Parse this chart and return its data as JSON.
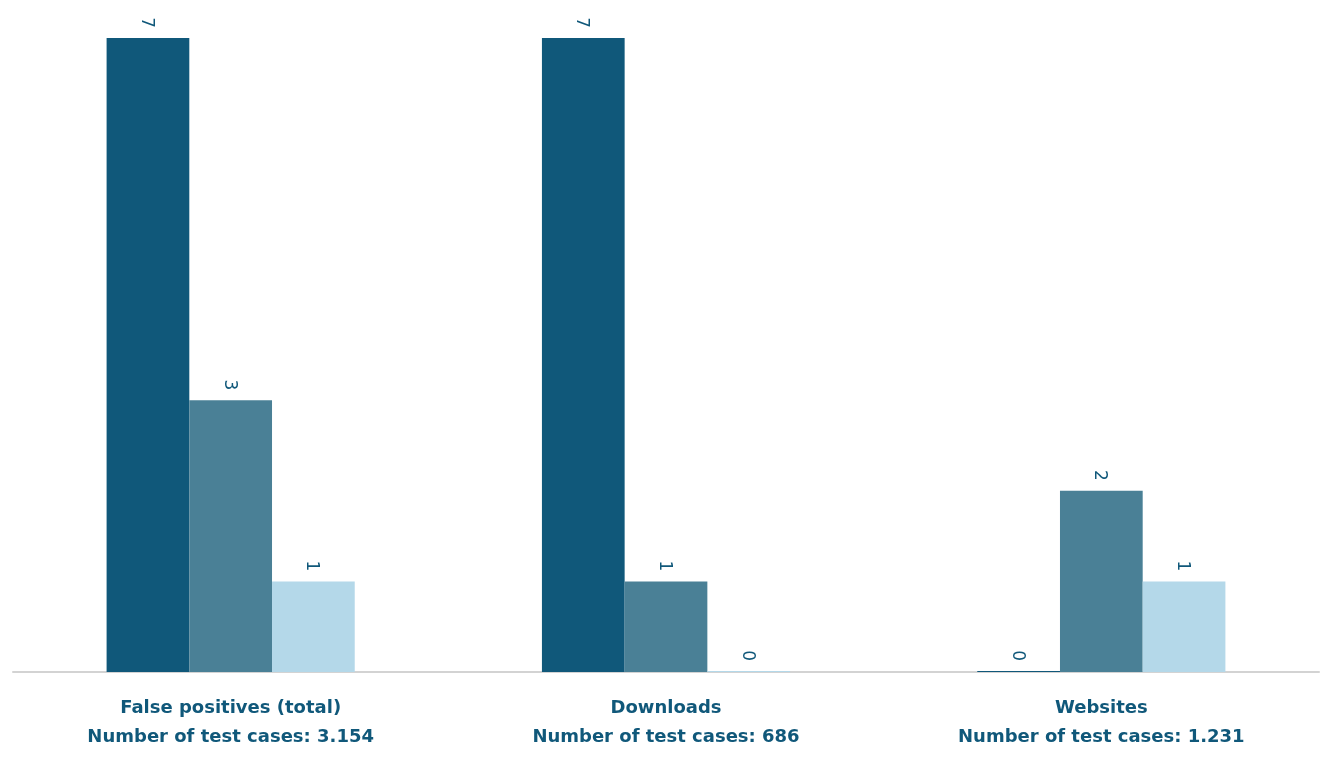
{
  "chart_data": {
    "type": "bar",
    "categories": [
      "False positives (total)\nNumber of test cases: 3.154",
      "Downloads\nNumber of test cases: 686",
      "Websites\nNumber of test cases: 1.231"
    ],
    "series": [
      {
        "color": "#10587a",
        "values": [
          7,
          7,
          0
        ]
      },
      {
        "color": "#4a8096",
        "values": [
          3,
          1,
          2
        ]
      },
      {
        "color": "#b4d8e9",
        "values": [
          1,
          0,
          1
        ]
      }
    ],
    "data_labels": true
  }
}
